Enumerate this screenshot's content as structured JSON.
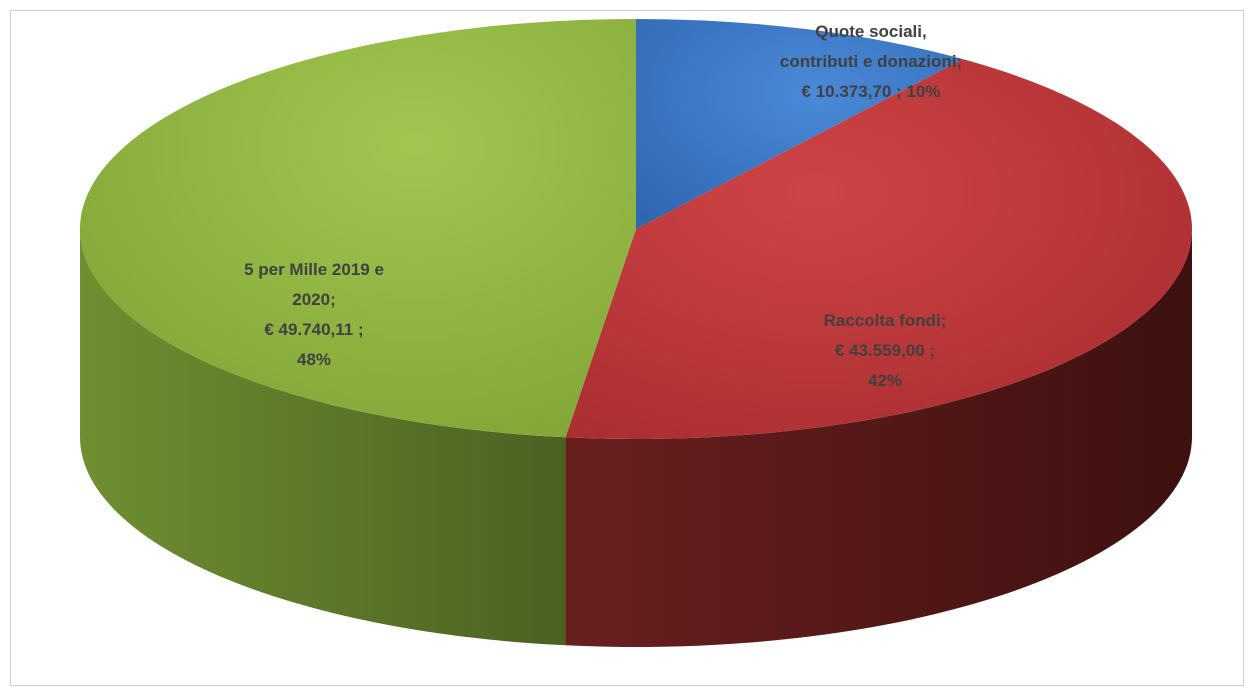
{
  "chart_data": {
    "type": "pie",
    "style": "3d",
    "title": "",
    "legend": "none",
    "slices": [
      {
        "name": "Quote sociali, contributi e donazioni",
        "value": 10373.7,
        "percent": 10,
        "color": "#3a78c8",
        "label_lines": [
          "Quote sociali,",
          "contributi e donazioni;",
          "€ 10.373,70 ; 10%"
        ]
      },
      {
        "name": "Raccolta fondi",
        "value": 43559.0,
        "percent": 42,
        "color": "#c0393b",
        "label_lines": [
          "Raccolta fondi;",
          "€ 43.559,00 ;",
          "42%"
        ]
      },
      {
        "name": "5 per Mille 2019 e 2020",
        "value": 49740.11,
        "percent": 48,
        "color": "#8fb33f",
        "label_lines": [
          "5 per Mille 2019 e",
          "2020;",
          "€ 49.740,11 ;",
          "48%"
        ]
      }
    ]
  }
}
